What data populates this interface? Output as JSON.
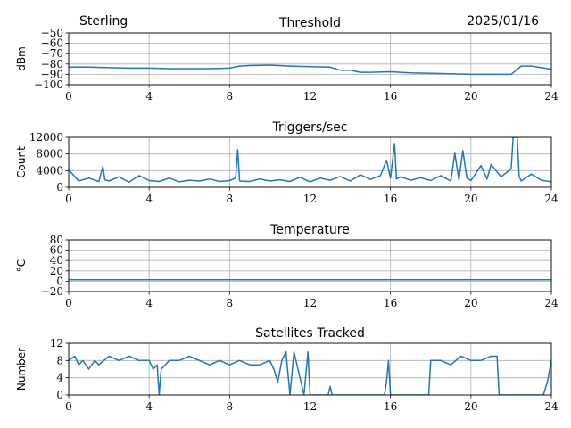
{
  "header": {
    "station": "Sterling",
    "date": "2025/01/16"
  },
  "colors": {
    "series": "#1f77b4",
    "grid": "#b0b0b0"
  },
  "chart_data": [
    {
      "type": "line",
      "title": "Threshold",
      "ylabel": "dBm",
      "xlim": [
        0,
        24
      ],
      "ylim": [
        -100,
        -50
      ],
      "xticks": [
        "0",
        "4",
        "8",
        "12",
        "16",
        "20",
        "24"
      ],
      "yticks": [
        "−50",
        "−60",
        "−70",
        "−80",
        "−90",
        "−100"
      ],
      "ytick_values": [
        -50,
        -60,
        -70,
        -80,
        -90,
        -100
      ],
      "grid": true,
      "series": [
        {
          "x": [
            0,
            1,
            2,
            3,
            4,
            5,
            6,
            7,
            8,
            8.5,
            9,
            10,
            11,
            12,
            13,
            13.5,
            14,
            14.5,
            15,
            16,
            17,
            18,
            19,
            20,
            21,
            22,
            22.5,
            23,
            24
          ],
          "y": [
            -83,
            -83,
            -83.5,
            -84,
            -84,
            -84.5,
            -84.5,
            -84.5,
            -84,
            -82,
            -81.5,
            -81,
            -82,
            -82.5,
            -83,
            -86,
            -86,
            -88,
            -88,
            -87.5,
            -88.5,
            -89,
            -89.5,
            -90,
            -90,
            -90,
            -82,
            -82,
            -85
          ]
        }
      ]
    },
    {
      "type": "line",
      "title": "Triggers/sec",
      "ylabel": "Count",
      "xlim": [
        0,
        24
      ],
      "ylim": [
        0,
        12000
      ],
      "xticks": [
        "0",
        "4",
        "8",
        "12",
        "16",
        "20",
        "24"
      ],
      "yticks": [
        "0",
        "4000",
        "8000",
        "12000"
      ],
      "ytick_values": [
        0,
        4000,
        8000,
        12000
      ],
      "grid": true,
      "series": [
        {
          "x": [
            0,
            0.5,
            1,
            1.5,
            1.7,
            1.8,
            2,
            2.5,
            3,
            3.5,
            4,
            4.5,
            5,
            5.5,
            6,
            6.5,
            7,
            7.5,
            8,
            8.3,
            8.4,
            8.5,
            9,
            9.5,
            10,
            10.5,
            11,
            11.5,
            12,
            12.5,
            13,
            13.5,
            14,
            14.5,
            15,
            15.5,
            15.8,
            16,
            16.2,
            16.3,
            16.5,
            17,
            17.5,
            18,
            18.5,
            19,
            19.2,
            19.4,
            19.6,
            19.8,
            20,
            20.5,
            20.8,
            21,
            21.5,
            22,
            22.1,
            22.2,
            22.3,
            22.4,
            22.5,
            23,
            23.5,
            24
          ],
          "y": [
            4200,
            1500,
            2200,
            1400,
            5000,
            1800,
            1500,
            2500,
            1200,
            2800,
            1600,
            1400,
            2200,
            1300,
            1700,
            1500,
            2000,
            1400,
            1600,
            2200,
            9000,
            1500,
            1400,
            2000,
            1500,
            1800,
            1400,
            2400,
            1300,
            2200,
            1700,
            2600,
            1500,
            3000,
            1900,
            2800,
            6500,
            2200,
            10500,
            2000,
            2500,
            1700,
            2300,
            1600,
            2800,
            1500,
            8200,
            1800,
            8800,
            2200,
            1600,
            5200,
            2000,
            5500,
            2500,
            4400,
            12000,
            12000,
            12000,
            2600,
            1500,
            3200,
            1700,
            1300
          ]
        }
      ]
    },
    {
      "type": "line",
      "title": "Temperature",
      "ylabel": "°C",
      "xlim": [
        0,
        24
      ],
      "ylim": [
        -20,
        80
      ],
      "xticks": [
        "0",
        "4",
        "8",
        "12",
        "16",
        "20",
        "24"
      ],
      "yticks": [
        "80",
        "60",
        "40",
        "20",
        "0",
        "−20"
      ],
      "ytick_values": [
        80,
        60,
        40,
        20,
        0,
        -20
      ],
      "grid": true,
      "series": [
        {
          "x": [
            0,
            6,
            12,
            18,
            24
          ],
          "y": [
            3,
            3,
            3,
            3,
            3
          ]
        }
      ]
    },
    {
      "type": "line",
      "title": "Satellites Tracked",
      "ylabel": "Number",
      "xlim": [
        0,
        24
      ],
      "ylim": [
        0,
        12
      ],
      "xticks": [
        "0",
        "4",
        "8",
        "12",
        "16",
        "20",
        "24"
      ],
      "yticks": [
        "12",
        "8",
        "4",
        "0"
      ],
      "ytick_values": [
        12,
        8,
        4,
        0
      ],
      "grid": true,
      "series": [
        {
          "x": [
            0,
            0.3,
            0.5,
            0.7,
            1,
            1.3,
            1.5,
            2,
            2.5,
            3,
            3.5,
            4,
            4.2,
            4.4,
            4.5,
            4.6,
            4.8,
            5,
            5.5,
            6,
            6.5,
            7,
            7.5,
            8,
            8.5,
            9,
            9.5,
            10,
            10.2,
            10.4,
            10.6,
            10.8,
            11,
            11.2,
            11.5,
            11.7,
            11.9,
            12,
            12.1,
            12.9,
            13,
            13.1,
            15.7,
            15.8,
            15.9,
            16,
            16.1,
            17.9,
            18,
            18.5,
            19,
            19.5,
            20,
            20.5,
            21,
            21.3,
            21.4,
            23.6,
            23.8,
            24
          ],
          "y": [
            8,
            9,
            7,
            8,
            6,
            8,
            7,
            9,
            8,
            9,
            8,
            8,
            6,
            7,
            0,
            6,
            7,
            8,
            8,
            9,
            8,
            7,
            8,
            7,
            8,
            7,
            7,
            8,
            6,
            3,
            8,
            10,
            0,
            10,
            4,
            0,
            10,
            0,
            0,
            0,
            2,
            0,
            0,
            3,
            8,
            0,
            0,
            0,
            8,
            8,
            7,
            9,
            8,
            8,
            9,
            9,
            0,
            0,
            3,
            8
          ]
        }
      ]
    }
  ]
}
